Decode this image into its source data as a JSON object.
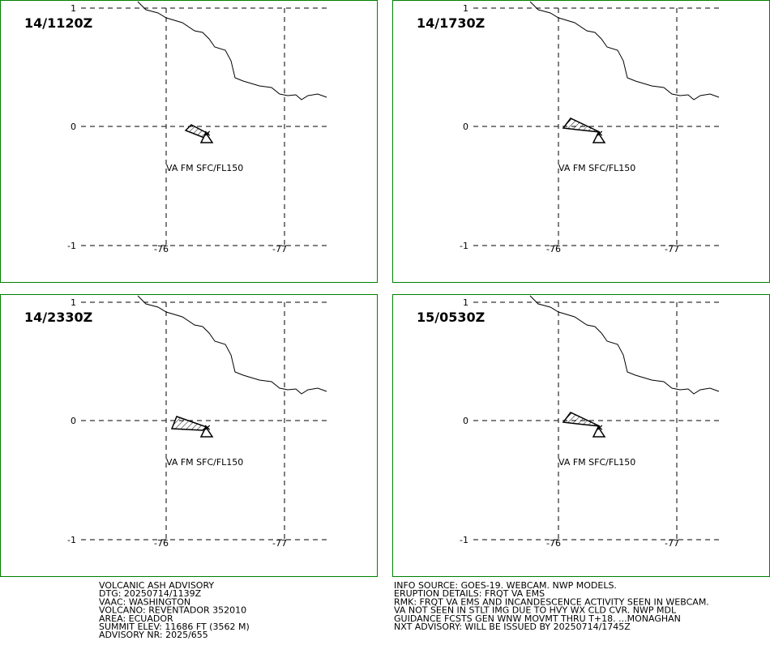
{
  "panels": [
    {
      "time": "14/1120Z"
    },
    {
      "time": "14/1730Z"
    },
    {
      "time": "14/2330Z"
    },
    {
      "time": "15/0530Z"
    }
  ],
  "grid": {
    "lat_labels": [
      "1",
      "0",
      "-1"
    ],
    "lon_labels": [
      "-76",
      "-77"
    ]
  },
  "ash_label": "VA FM SFC/FL150",
  "advisory_left": [
    "VOLCANIC ASH ADVISORY",
    "DTG: 20250714/1139Z",
    "VAAC: WASHINGTON",
    "VOLCANO: REVENTADOR 352010",
    "AREA: ECUADOR",
    "SUMMIT ELEV: 11686 FT (3562 M)",
    "ADVISORY NR: 2025/655"
  ],
  "advisory_right": [
    "INFO SOURCE: GOES-19. WEBCAM. NWP MODELS.",
    "ERUPTION DETAILS: FRQT VA EMS",
    "RMK: FRQT VA EMS AND INCANDESCENCE ACTIVITY SEEN IN WEBCAM.",
    "VA NOT SEEN IN STLT IMG DUE TO HVY WX CLD CVR. NWP MDL",
    "GUIDANCE FCSTS GEN WNW MOVMT THRU T+18. ...MONAGHAN",
    "NXT ADVISORY: WILL BE ISSUED BY 20250714/1745Z"
  ]
}
